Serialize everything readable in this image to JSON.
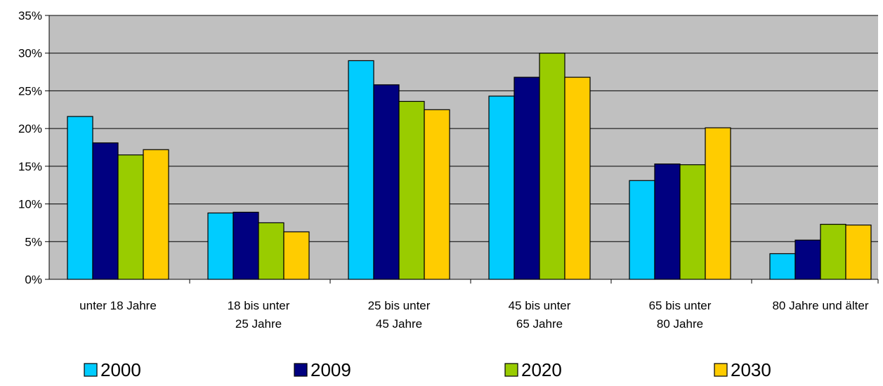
{
  "chart_data": {
    "type": "bar",
    "title": "",
    "xlabel": "",
    "ylabel": "",
    "ylim": [
      0,
      35
    ],
    "yticks": [
      "0%",
      "5%",
      "10%",
      "15%",
      "20%",
      "25%",
      "30%",
      "35%"
    ],
    "ytick_values": [
      0,
      5,
      10,
      15,
      20,
      25,
      30,
      35
    ],
    "grid": true,
    "legend_position": "bottom",
    "categories": [
      [
        "unter 18 Jahre"
      ],
      [
        "18 bis unter",
        "25 Jahre"
      ],
      [
        "25 bis unter",
        "45 Jahre"
      ],
      [
        "45 bis unter",
        "65 Jahre"
      ],
      [
        "65 bis unter",
        "80 Jahre"
      ],
      [
        "80 Jahre und älter"
      ]
    ],
    "series": [
      {
        "name": "2000",
        "color": "#00ccff",
        "values": [
          21.6,
          8.8,
          29.0,
          24.3,
          13.1,
          3.4
        ]
      },
      {
        "name": "2009",
        "color": "#000080",
        "values": [
          18.1,
          8.9,
          25.8,
          26.8,
          15.3,
          5.2
        ]
      },
      {
        "name": "2020",
        "color": "#99cc00",
        "values": [
          16.5,
          7.5,
          23.6,
          30.0,
          15.2,
          7.3
        ]
      },
      {
        "name": "2030",
        "color": "#ffcc00",
        "values": [
          17.2,
          6.3,
          22.5,
          26.8,
          20.1,
          7.2
        ]
      }
    ],
    "plot_background": "#c0c0c0"
  }
}
